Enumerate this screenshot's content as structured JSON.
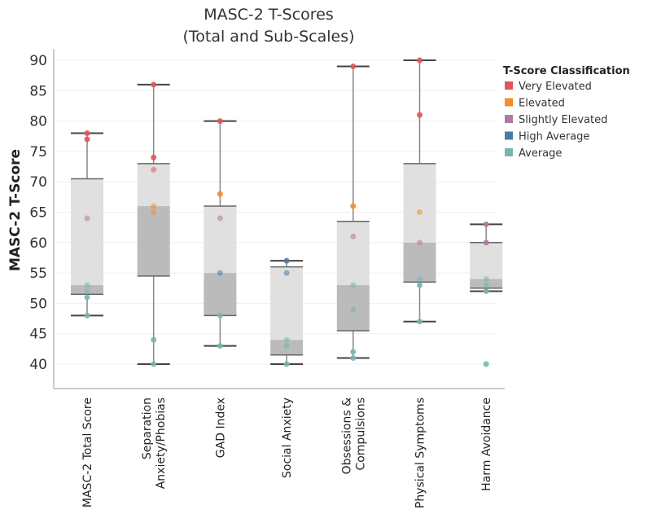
{
  "chart_data": {
    "type": "box",
    "title": [
      "MASC-2 T-Scores",
      "(Total and Sub-Scales)"
    ],
    "ylabel": "MASC-2 T-Score",
    "xlabel": "",
    "ylim": [
      35,
      92
    ],
    "yticks": [
      40,
      45,
      50,
      55,
      60,
      65,
      70,
      75,
      80,
      85,
      90
    ],
    "grid": true,
    "legend": {
      "title": "T-Score Classification",
      "placement": "right",
      "items": [
        {
          "name": "Very Elevated",
          "color": "#e15759"
        },
        {
          "name": "Elevated",
          "color": "#f28e2b"
        },
        {
          "name": "Slightly Elevated",
          "color": "#b07aa1"
        },
        {
          "name": "High Average",
          "color": "#4e79a7"
        },
        {
          "name": "Average",
          "color": "#76b7b2"
        }
      ]
    },
    "categories": [
      {
        "label": [
          "MASC-2 Total Score"
        ],
        "min": 48,
        "q1": 51.5,
        "median": 53,
        "q3": 70.5,
        "max": 78,
        "points": [
          [
            78,
            0
          ],
          [
            77,
            0
          ],
          [
            64,
            2
          ],
          [
            53,
            4
          ],
          [
            52,
            4
          ],
          [
            51,
            4
          ],
          [
            48,
            4
          ]
        ]
      },
      {
        "label": [
          "Separation",
          "Anxiety/Phobias"
        ],
        "min": 40,
        "q1": 54.5,
        "median": 66,
        "q3": 73,
        "max": 86,
        "points": [
          [
            86,
            0
          ],
          [
            74,
            0
          ],
          [
            72,
            0
          ],
          [
            66,
            1
          ],
          [
            65,
            1
          ],
          [
            44,
            4
          ],
          [
            40,
            4
          ]
        ]
      },
      {
        "label": [
          "GAD Index"
        ],
        "min": 43,
        "q1": 48,
        "median": 55,
        "q3": 66,
        "max": 80,
        "points": [
          [
            80,
            0
          ],
          [
            68,
            1
          ],
          [
            64,
            2
          ],
          [
            55,
            3
          ],
          [
            48,
            4
          ],
          [
            43,
            4
          ]
        ]
      },
      {
        "label": [
          "Social Anxiety"
        ],
        "min": 40,
        "q1": 41.5,
        "median": 44,
        "q3": 56,
        "max": 57,
        "points": [
          [
            57,
            3
          ],
          [
            55,
            3
          ],
          [
            44,
            4
          ],
          [
            43,
            4
          ],
          [
            40,
            4
          ]
        ]
      },
      {
        "label": [
          "Obsessions &",
          "Compulsions"
        ],
        "min": 41,
        "q1": 45.5,
        "median": 53,
        "q3": 63.5,
        "max": 89,
        "points": [
          [
            89,
            0
          ],
          [
            66,
            1
          ],
          [
            61,
            2
          ],
          [
            53,
            4
          ],
          [
            49,
            4
          ],
          [
            42,
            4
          ],
          [
            41,
            4
          ]
        ]
      },
      {
        "label": [
          "Physical Symptoms"
        ],
        "min": 47,
        "q1": 53.5,
        "median": 60,
        "q3": 73,
        "max": 90,
        "points": [
          [
            90,
            0
          ],
          [
            81,
            0
          ],
          [
            65,
            1
          ],
          [
            60,
            2
          ],
          [
            54,
            4
          ],
          [
            53,
            4
          ],
          [
            47,
            4
          ]
        ]
      },
      {
        "label": [
          "Harm Avoidance"
        ],
        "min": 52,
        "q1": 52.5,
        "median": 54,
        "q3": 60,
        "max": 63,
        "points": [
          [
            63,
            2
          ],
          [
            60,
            2
          ],
          [
            54,
            4
          ],
          [
            53,
            4
          ],
          [
            52,
            4
          ],
          [
            40,
            4
          ]
        ]
      }
    ]
  }
}
